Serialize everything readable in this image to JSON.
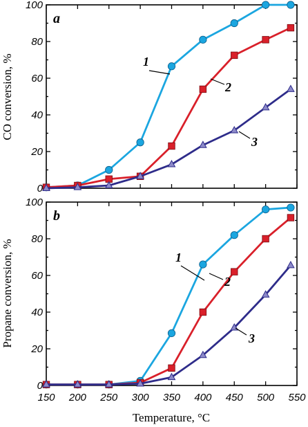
{
  "chart_data": [
    {
      "panel": "a",
      "type": "line",
      "title": "",
      "xlabel": "",
      "ylabel": "CO conversion, %",
      "ylim": [
        0,
        100
      ],
      "yticks": [
        "0",
        "20",
        "40",
        "60",
        "80",
        "100"
      ],
      "grid": false,
      "x": [
        150,
        200,
        250,
        300,
        350,
        400,
        450,
        500,
        540
      ],
      "series": [
        {
          "name": "1",
          "color": "#1ba6e0",
          "marker": "circle",
          "values": [
            0.5,
            1.5,
            10,
            25,
            66.5,
            81,
            90,
            100,
            100
          ]
        },
        {
          "name": "2",
          "color": "#d9202a",
          "marker": "square",
          "values": [
            0.5,
            1.5,
            5,
            6.5,
            23,
            54,
            72.5,
            81,
            87.5
          ]
        },
        {
          "name": "3",
          "color": "#2e2c8a",
          "marker": "triangle",
          "values": [
            0,
            0.5,
            1.5,
            6.5,
            13,
            23.5,
            31.5,
            44,
            54
          ]
        }
      ]
    },
    {
      "panel": "b",
      "type": "line",
      "title": "",
      "xlabel": "Temperature, °C",
      "ylabel": "Propane conversion, %",
      "xlim": [
        150,
        550
      ],
      "ylim": [
        0,
        100
      ],
      "xticks": [
        "150",
        "200",
        "250",
        "300",
        "350",
        "400",
        "450",
        "500",
        "550"
      ],
      "yticks": [
        "0",
        "20",
        "40",
        "60",
        "80",
        "100"
      ],
      "grid": false,
      "x": [
        150,
        200,
        250,
        300,
        350,
        400,
        450,
        500,
        540
      ],
      "series": [
        {
          "name": "1",
          "color": "#1ba6e0",
          "marker": "circle",
          "values": [
            0.5,
            0.5,
            0.5,
            2.5,
            28.5,
            66,
            82,
            96,
            97
          ]
        },
        {
          "name": "2",
          "color": "#d9202a",
          "marker": "square",
          "values": [
            0.5,
            0.5,
            0.5,
            1.5,
            9.5,
            40,
            62,
            80,
            91.5
          ]
        },
        {
          "name": "3",
          "color": "#2e2c8a",
          "marker": "triangle",
          "values": [
            0.5,
            0.5,
            0.5,
            1,
            4.5,
            16.5,
            31.5,
            49.5,
            65.5
          ]
        }
      ]
    }
  ]
}
